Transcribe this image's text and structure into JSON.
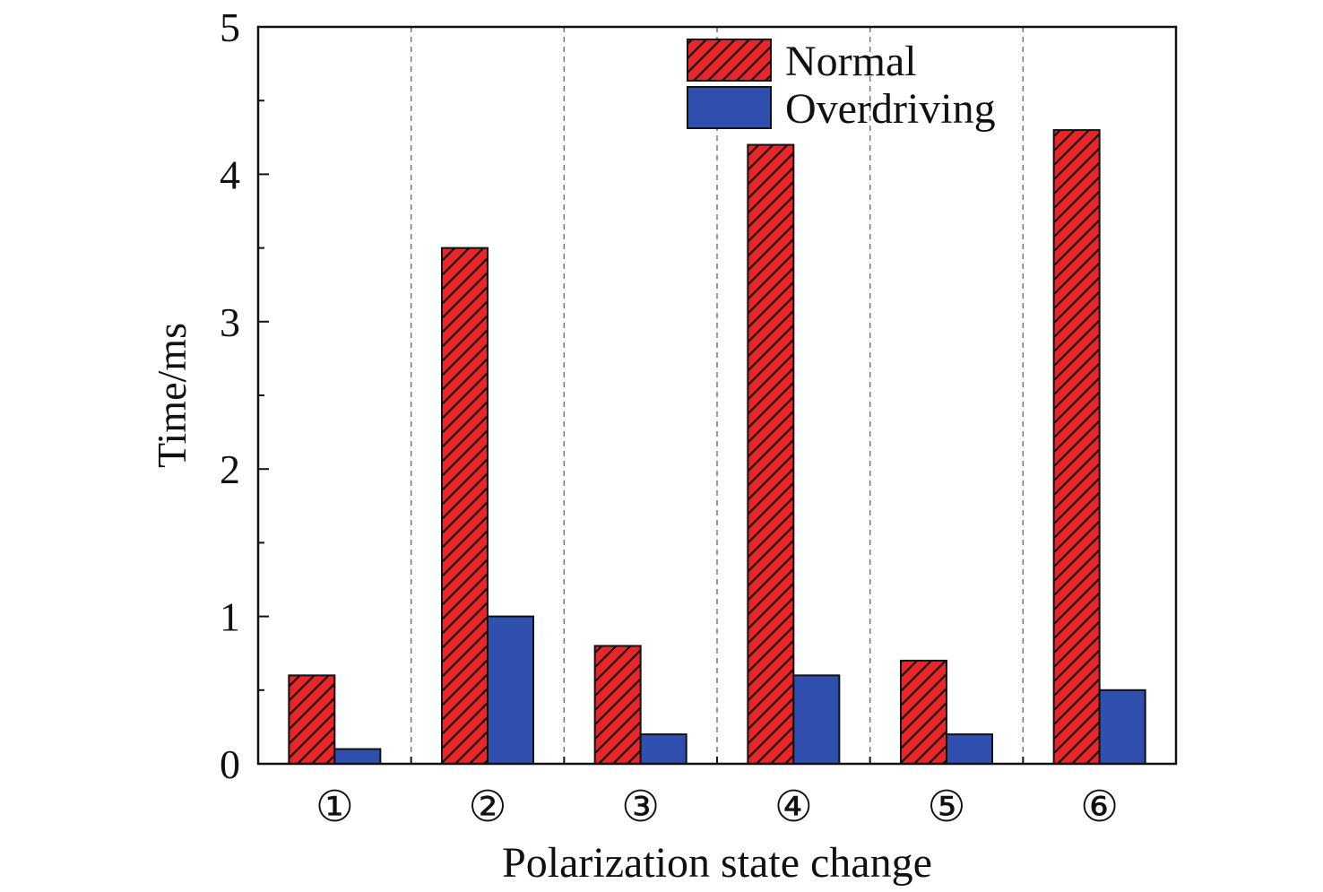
{
  "chart_data": {
    "type": "bar",
    "title": "",
    "xlabel": "Polarization state change",
    "ylabel": "Time/ms",
    "categories": [
      "①",
      "②",
      "③",
      "④",
      "⑤",
      "⑥"
    ],
    "ylim": [
      0,
      5
    ],
    "yticks": [
      "0",
      "1",
      "2",
      "3",
      "4",
      "5"
    ],
    "grid": false,
    "group_separators": "dashed vertical lines between groups",
    "legend_position": "top-center",
    "series": [
      {
        "name": "Normal",
        "values": [
          0.6,
          3.5,
          0.8,
          4.2,
          0.7,
          4.3
        ],
        "color": "#e8262a",
        "pattern": "diagonal-hatch"
      },
      {
        "name": "Overdriving",
        "values": [
          0.1,
          1.0,
          0.2,
          0.6,
          0.2,
          0.5
        ],
        "color": "#3050b0",
        "pattern": "solid"
      }
    ]
  }
}
